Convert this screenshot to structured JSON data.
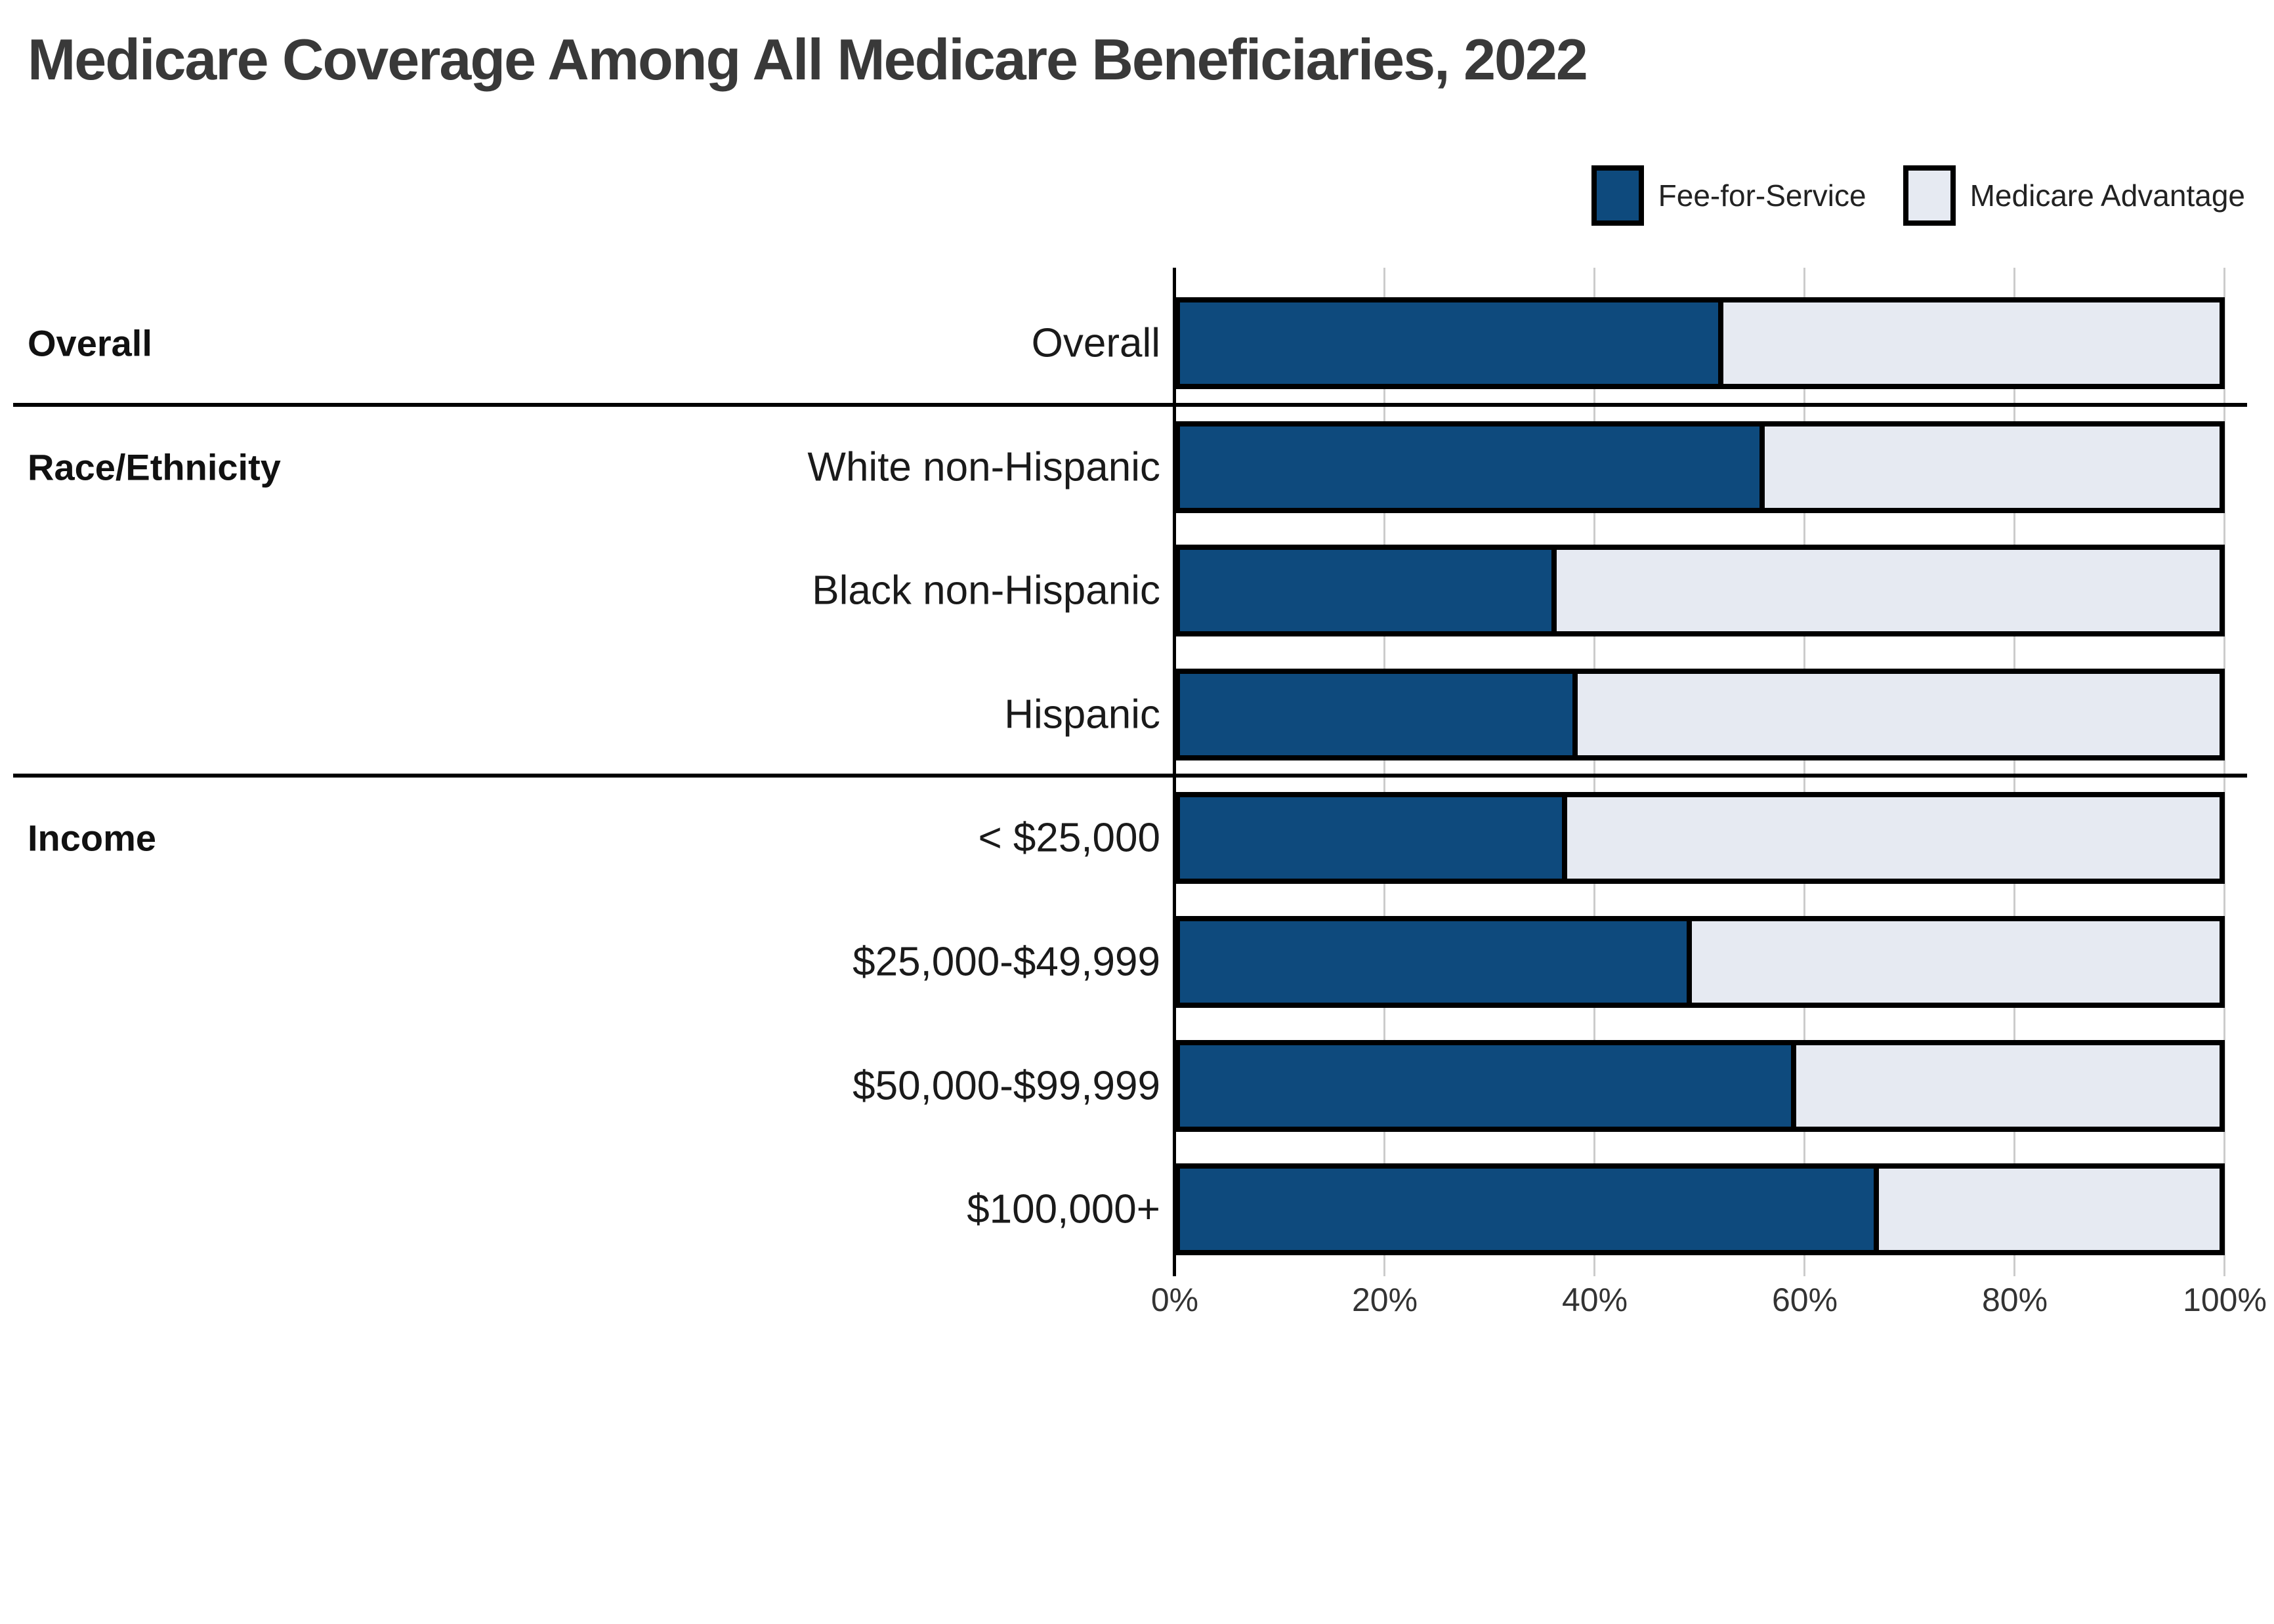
{
  "chart_data": {
    "type": "bar",
    "stacked": true,
    "orientation": "horizontal",
    "title": "Medicare Coverage Among All Medicare Beneficiaries, 2022",
    "categories": [
      "Overall",
      "White non-Hispanic",
      "Black non-Hispanic",
      "Hispanic",
      "< $25,000",
      "$25,000-$49,999",
      "$50,000-$99,999",
      "$100,000+"
    ],
    "series": [
      {
        "name": "Fee-for-Service",
        "color": "#0e4a7d",
        "values": [
          52,
          56,
          36,
          38,
          37,
          49,
          59,
          67
        ]
      },
      {
        "name": "Medicare Advantage",
        "color": "#e6eaf2",
        "values": [
          48,
          44,
          64,
          62,
          63,
          51,
          41,
          33
        ]
      }
    ],
    "groups": [
      {
        "label": "Overall",
        "categories": [
          "Overall"
        ]
      },
      {
        "label": "Race/Ethnicity",
        "categories": [
          "White non-Hispanic",
          "Black non-Hispanic",
          "Hispanic"
        ]
      },
      {
        "label": "Income",
        "categories": [
          "< $25,000",
          "$25,000-$49,999",
          "$50,000-$99,999",
          "$100,000+"
        ]
      }
    ],
    "x_ticks": [
      "0%",
      "20%",
      "40%",
      "60%",
      "80%",
      "100%"
    ],
    "xlabel": "",
    "ylabel": "",
    "xlim": [
      0,
      100
    ],
    "units": "percent of beneficiaries",
    "grid": true,
    "legend_position": "top-right"
  },
  "legend": {
    "items": [
      {
        "label": "Fee-for-Service",
        "swatch_color": "#0e4a7d"
      },
      {
        "label": "Medicare Advantage",
        "swatch_color": "#e6eaf2"
      }
    ]
  },
  "colors": {
    "fee_for_service": "#0e4a7d",
    "medicare_advantage": "#e6eaf2",
    "bar_border": "#000000",
    "gridline": "#cccccc",
    "axis_line": "#000000",
    "section_divider": "#000000",
    "title_text": "#393939",
    "category_text": "#1a1a1a",
    "section_text": "#111111",
    "tick_text": "#333333",
    "background": "#ffffff"
  }
}
